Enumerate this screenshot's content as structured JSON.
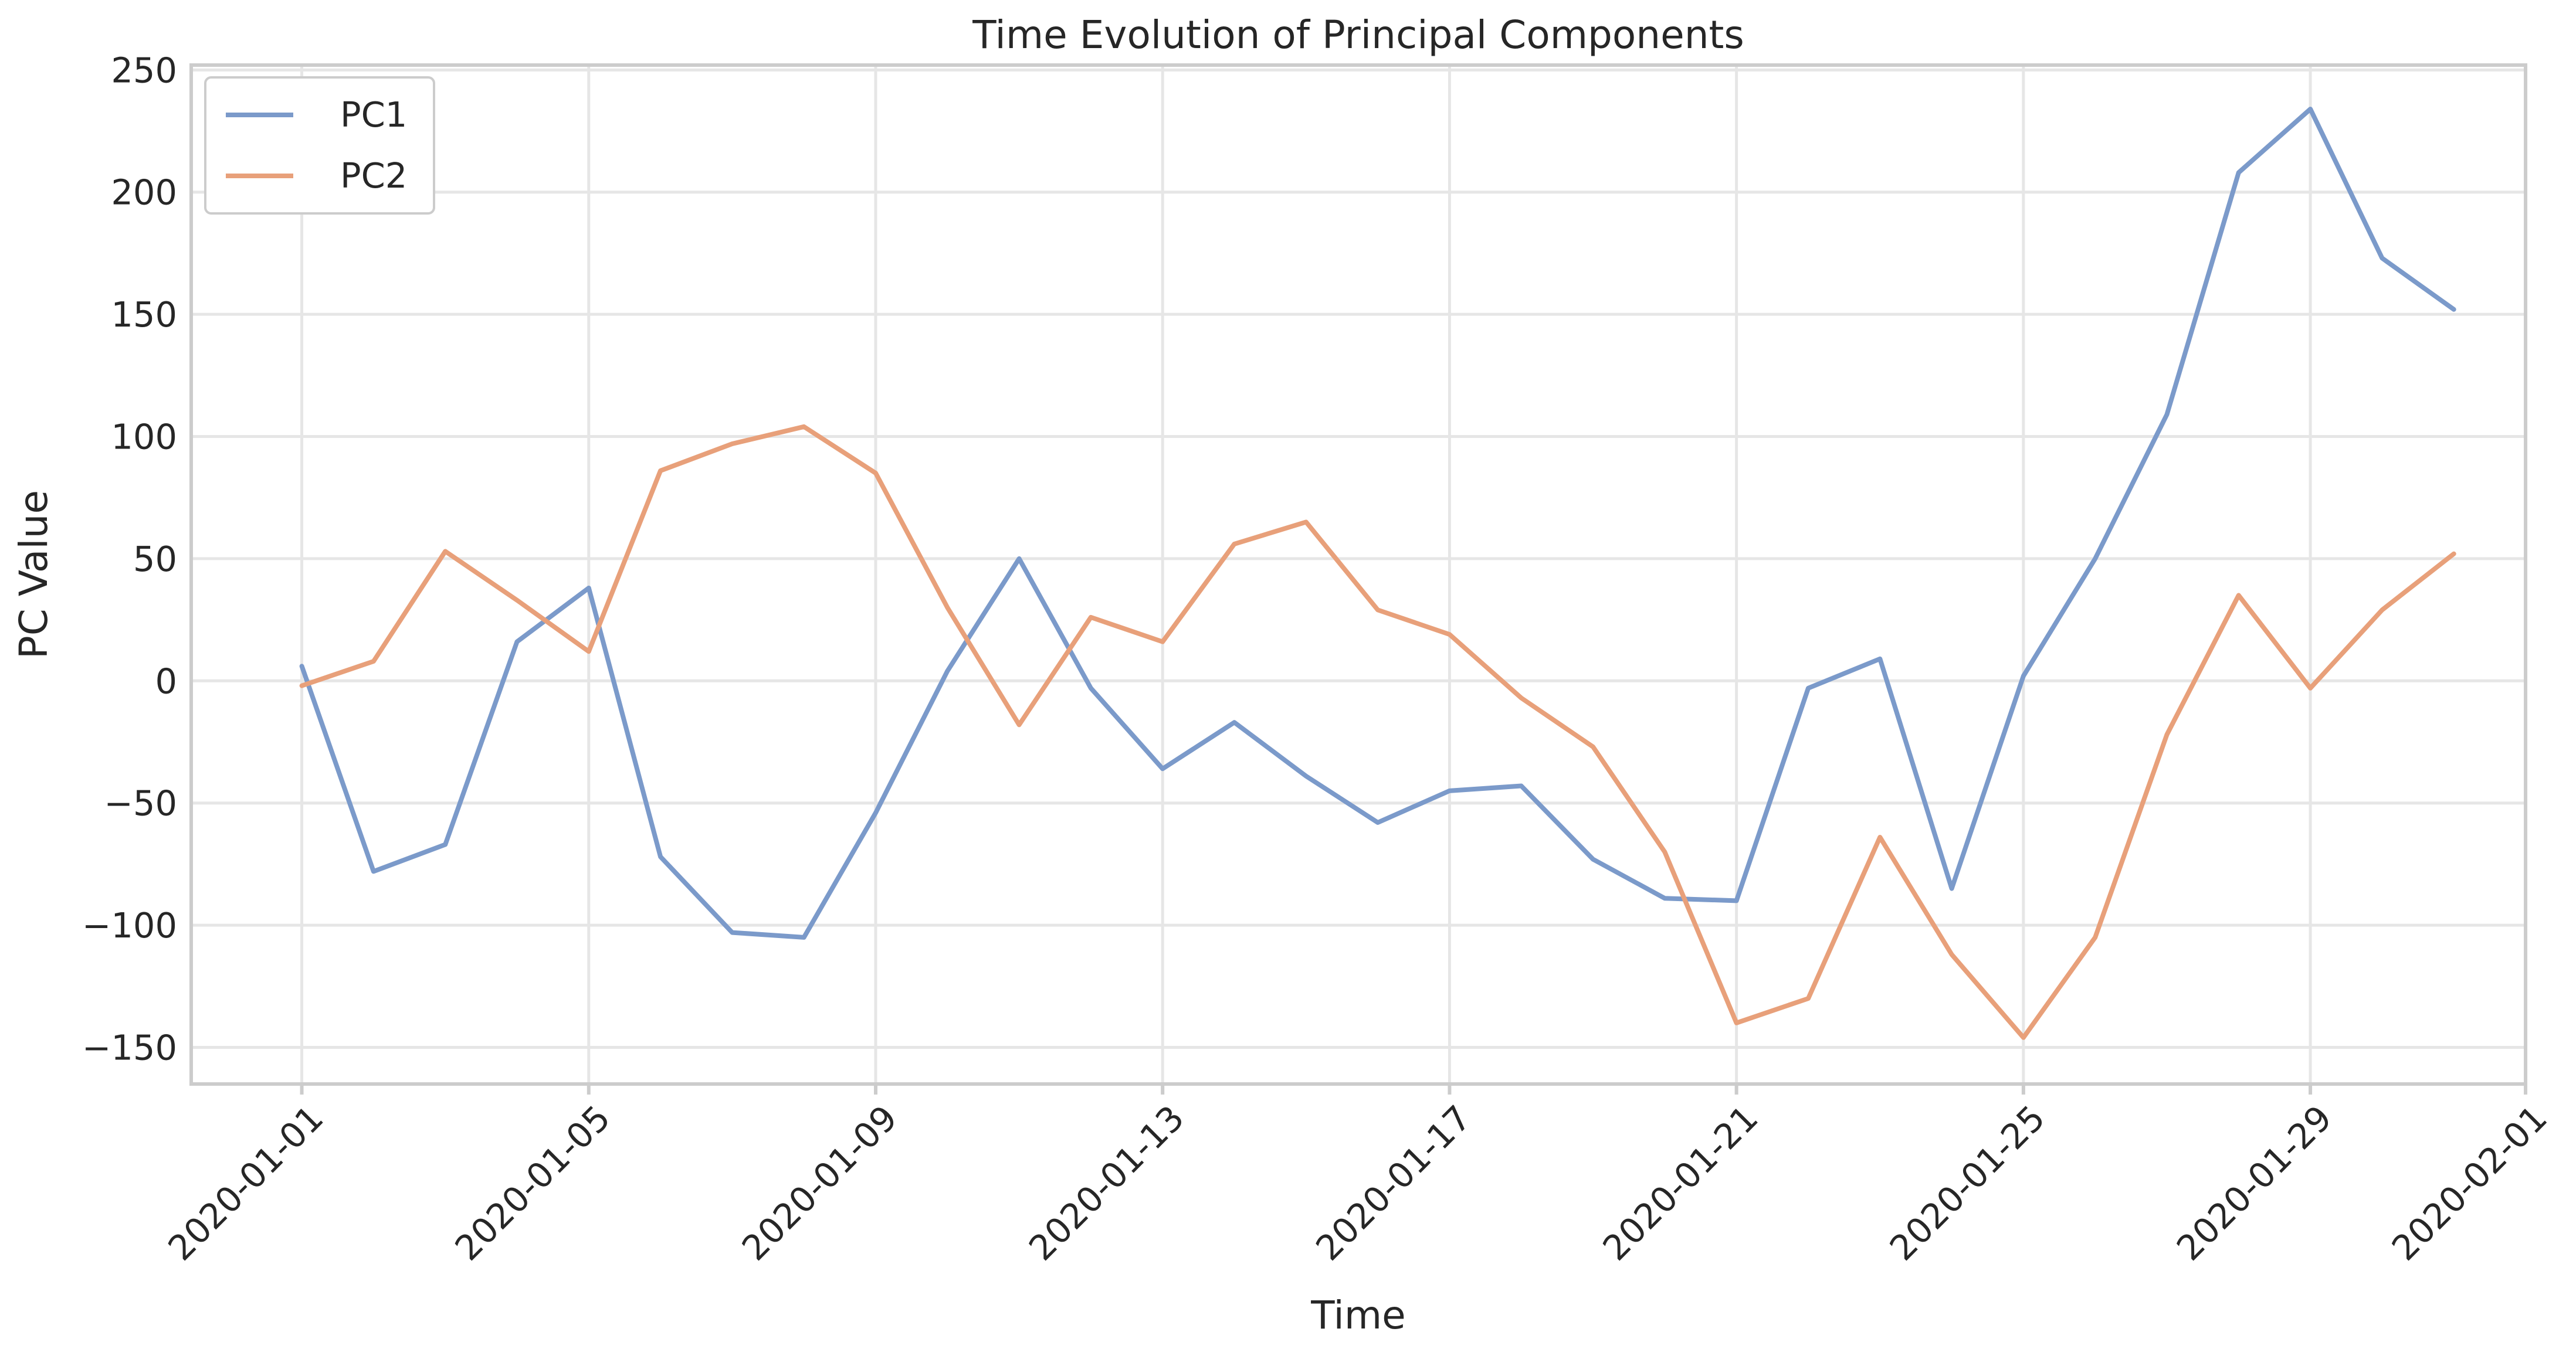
{
  "chart_data": {
    "type": "line",
    "title": "Time Evolution of Principal Components",
    "xlabel": "Time",
    "ylabel": "PC Value",
    "x": [
      "2020-01-01",
      "2020-01-02",
      "2020-01-03",
      "2020-01-04",
      "2020-01-05",
      "2020-01-06",
      "2020-01-07",
      "2020-01-08",
      "2020-01-09",
      "2020-01-10",
      "2020-01-11",
      "2020-01-12",
      "2020-01-13",
      "2020-01-14",
      "2020-01-15",
      "2020-01-16",
      "2020-01-17",
      "2020-01-18",
      "2020-01-19",
      "2020-01-20",
      "2020-01-21",
      "2020-01-22",
      "2020-01-23",
      "2020-01-24",
      "2020-01-25",
      "2020-01-26",
      "2020-01-27",
      "2020-01-28",
      "2020-01-29",
      "2020-01-30",
      "2020-01-31"
    ],
    "series": [
      {
        "name": "PC1",
        "color": "#7b9aca",
        "values": [
          6,
          -78,
          -67,
          16,
          38,
          -72,
          -103,
          -105,
          -54,
          4,
          50,
          -3,
          -36,
          -17,
          -39,
          -58,
          -45,
          -43,
          -73,
          -89,
          -90,
          -3,
          9,
          -85,
          2,
          50,
          109,
          208,
          234,
          173,
          152
        ]
      },
      {
        "name": "PC2",
        "color": "#e8a07a",
        "values": [
          -2,
          8,
          53,
          33,
          12,
          86,
          97,
          104,
          85,
          30,
          -18,
          26,
          16,
          56,
          65,
          29,
          19,
          -7,
          -27,
          -70,
          -140,
          -130,
          -64,
          -112,
          -146,
          -105,
          -22,
          35,
          -3,
          29,
          52
        ]
      }
    ],
    "xticks": [
      "2020-01-01",
      "2020-01-05",
      "2020-01-09",
      "2020-01-13",
      "2020-01-17",
      "2020-01-21",
      "2020-01-25",
      "2020-01-29",
      "2020-02-01"
    ],
    "yticks": [
      -150,
      -100,
      -50,
      0,
      50,
      100,
      150,
      200,
      250
    ],
    "xlim": [
      "2019-12-30 11:00",
      "2020-02-01"
    ],
    "ylim": [
      -165,
      252
    ],
    "grid": true,
    "legend_position": "top-left"
  }
}
